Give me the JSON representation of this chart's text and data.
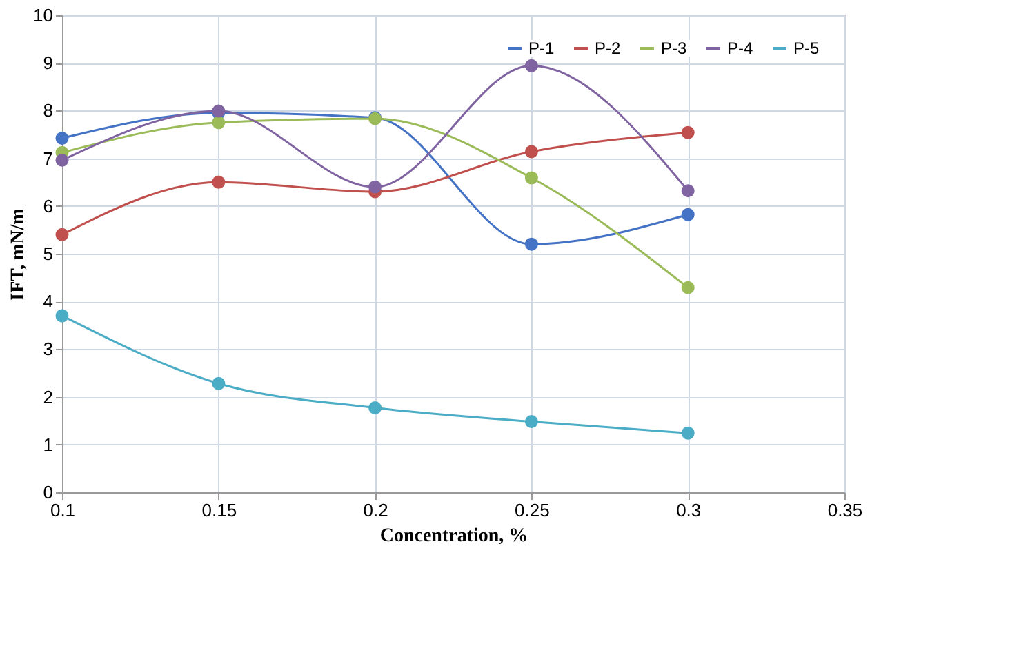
{
  "chart_data": {
    "type": "line",
    "xlabel": "Concentration, %",
    "ylabel": "IFT, mN/m",
    "x": [
      0.1,
      0.15,
      0.2,
      0.25,
      0.3
    ],
    "series": [
      {
        "name": "P-1",
        "color": "#4472c4",
        "values": [
          7.42,
          7.95,
          7.85,
          5.2,
          5.82
        ]
      },
      {
        "name": "P-2",
        "color": "#c0504d",
        "values": [
          5.4,
          6.5,
          6.3,
          7.14,
          7.54
        ]
      },
      {
        "name": "P-3",
        "color": "#9bbb59",
        "values": [
          7.12,
          7.75,
          7.83,
          6.59,
          4.29
        ]
      },
      {
        "name": "P-4",
        "color": "#8064a2",
        "values": [
          6.96,
          7.99,
          6.4,
          8.94,
          6.32
        ]
      },
      {
        "name": "P-5",
        "color": "#4bacc6",
        "values": [
          3.7,
          2.28,
          1.77,
          1.48,
          1.24
        ]
      }
    ],
    "xlim": [
      0.1,
      0.35
    ],
    "xticks": [
      0.1,
      0.15,
      0.2,
      0.25,
      0.3,
      0.35
    ],
    "ylim": [
      0,
      10
    ],
    "yticks": [
      0,
      1,
      2,
      3,
      4,
      5,
      6,
      7,
      8,
      9,
      10
    ],
    "grid": true,
    "legend": "top right",
    "marker": "circle",
    "line_style": "solid"
  }
}
